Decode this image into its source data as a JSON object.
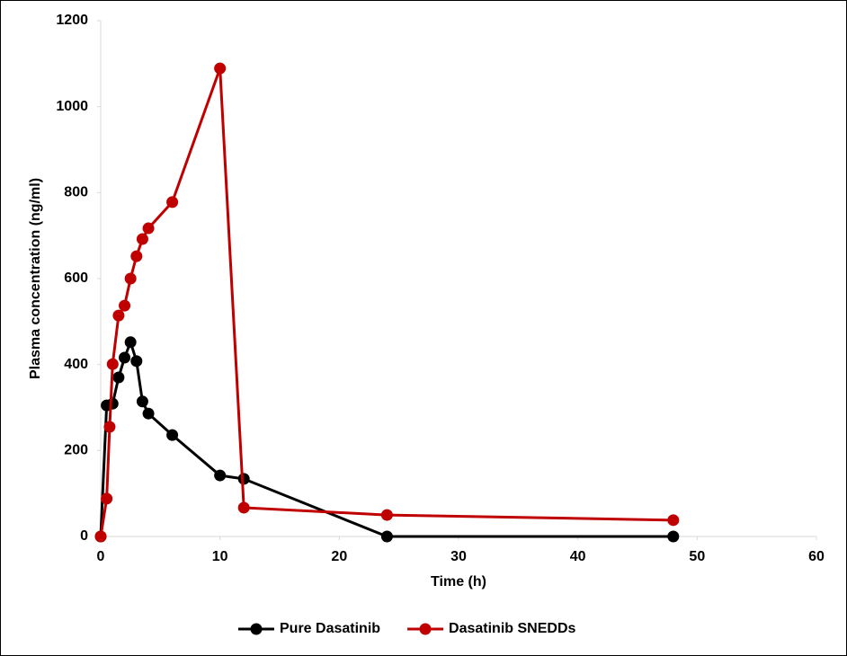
{
  "chart_data": {
    "type": "line",
    "x_label": "Time (h)",
    "y_label": "Plasma concentration (ng/ml)",
    "xlim": [
      0,
      60
    ],
    "xticks": [
      0,
      10,
      20,
      30,
      40,
      50,
      60
    ],
    "ylim": [
      0,
      1200
    ],
    "yticks": [
      0,
      200,
      400,
      600,
      800,
      1000,
      1200
    ],
    "legend": "bottom",
    "series": [
      {
        "name": "Pure Dasatinib",
        "color": "#000000",
        "x": [
          0,
          0.5,
          1,
          1.5,
          2,
          2.5,
          3,
          3.5,
          4,
          6,
          10,
          12,
          24,
          48
        ],
        "values": [
          0,
          305,
          309,
          370,
          416,
          452,
          408,
          314,
          286,
          236,
          142,
          134,
          0,
          0
        ]
      },
      {
        "name": "Dasatinib SNEDDs",
        "color": "#c00000",
        "x": [
          0,
          0.5,
          0.75,
          1,
          1.5,
          2,
          2.5,
          3,
          3.5,
          4,
          6,
          10,
          12,
          24,
          48
        ],
        "values": [
          0,
          88,
          255,
          401,
          514,
          537,
          600,
          652,
          692,
          717,
          778,
          1089,
          67,
          50,
          38
        ]
      }
    ]
  }
}
